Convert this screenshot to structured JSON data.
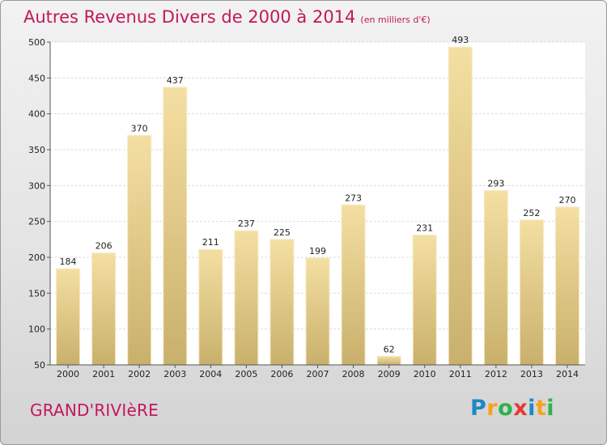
{
  "title": "Autres Revenus Divers de 2000 à 2014",
  "subtitle": "(en milliers d'€)",
  "commune": "GRAND'RIVIèRE",
  "logo": {
    "letters": [
      "P",
      "r",
      "o",
      "x",
      "i",
      "t",
      "i"
    ],
    "colors": [
      "#1e88c8",
      "#f7a21b",
      "#2bb24c",
      "#e53935",
      "#1e88c8",
      "#f7a21b",
      "#2bb24c"
    ]
  },
  "colors": {
    "bar_top": "#f4dfa2",
    "bar_bottom": "#c9b06c",
    "accent": "#c2185b"
  },
  "chart_data": {
    "type": "bar",
    "categories": [
      "2000",
      "2001",
      "2002",
      "2003",
      "2004",
      "2005",
      "2006",
      "2007",
      "2008",
      "2009",
      "2010",
      "2011",
      "2012",
      "2013",
      "2014"
    ],
    "values": [
      184,
      206,
      370,
      437,
      211,
      237,
      225,
      199,
      273,
      62,
      231,
      493,
      293,
      252,
      270
    ],
    "ylim": [
      50,
      500
    ],
    "yticks": [
      50,
      100,
      150,
      200,
      250,
      300,
      350,
      400,
      450,
      500
    ],
    "grid": true
  }
}
